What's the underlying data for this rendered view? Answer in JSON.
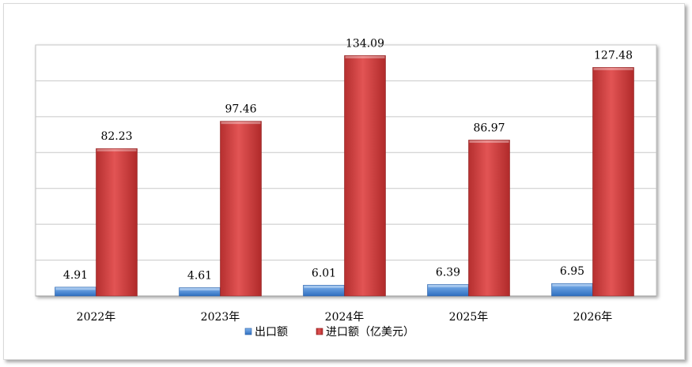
{
  "chart_data": {
    "type": "bar",
    "categories": [
      "2022年",
      "2023年",
      "2024年",
      "2025年",
      "2026年"
    ],
    "series": [
      {
        "name": "出口额",
        "values": [
          4.91,
          4.61,
          6.01,
          6.39,
          6.95
        ],
        "color": "#4f8fd8"
      },
      {
        "name": "进口额（亿美元）",
        "values": [
          82.23,
          97.46,
          134.09,
          86.97,
          127.48
        ],
        "color": "#d94848"
      }
    ],
    "ylim": [
      0,
      140
    ],
    "grid": true,
    "legend_position": "bottom"
  }
}
